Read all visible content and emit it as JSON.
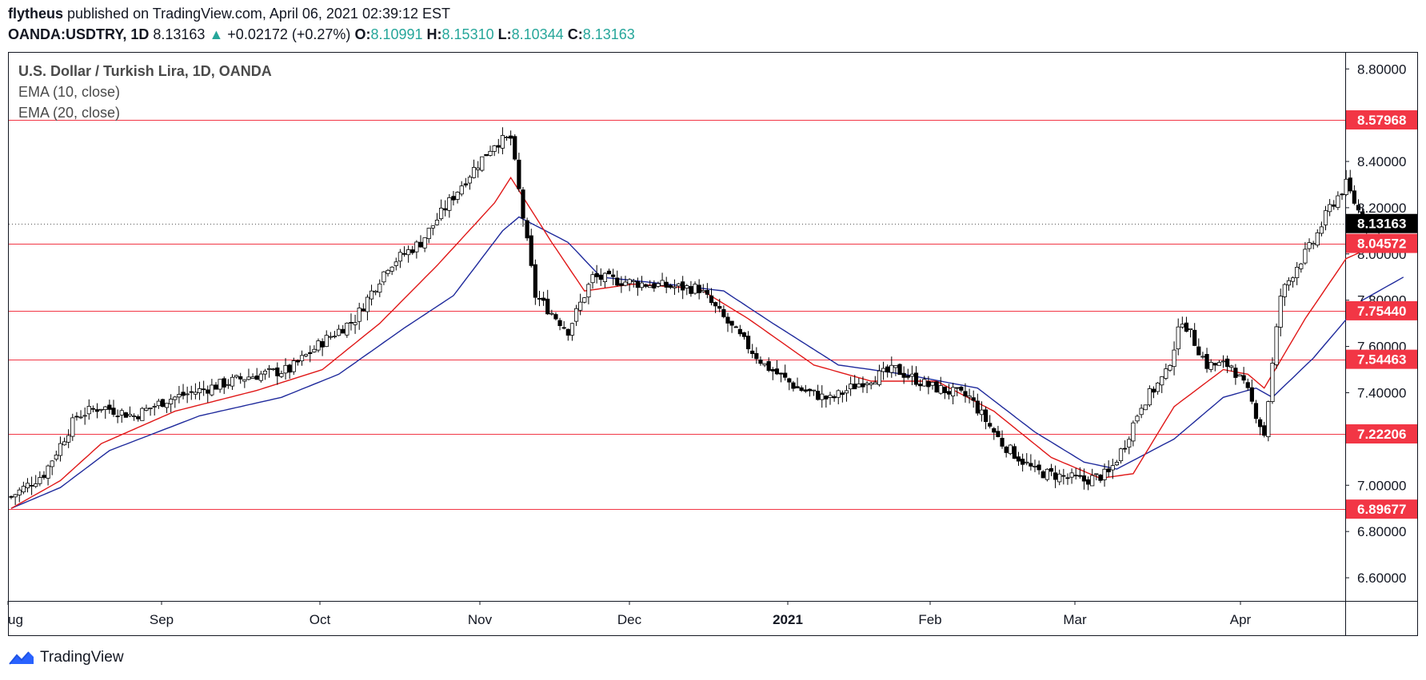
{
  "header": {
    "author": "flytheus",
    "published": "published on TradingView.com, April 06, 2021 02:39:12 EST",
    "symbol": "OANDA:USDTRY, 1D",
    "last": "8.13163",
    "change_arrow": "▲",
    "change": "+0.02172 (+0.27%)",
    "open_label": "O:",
    "open": "8.10991",
    "high_label": "H:",
    "high": "8.15310",
    "low_label": "L:",
    "low": "8.10344",
    "close_label": "C:",
    "close": "8.13163"
  },
  "legend": {
    "title": "U.S. Dollar / Turkish Lira, 1D, OANDA",
    "ema10": "EMA (10, close)",
    "ema20": "EMA (20, close)"
  },
  "footer": {
    "brand": "TradingView"
  },
  "colors": {
    "up_candle": "#ffffff",
    "down_candle": "#000000",
    "ema10": "#e01818",
    "ema20": "#1f2a9c",
    "level_line": "#f23645",
    "last_price_badge": "#000000"
  },
  "chart_data": {
    "type": "candlestick",
    "symbol": "OANDA:USDTRY",
    "timeframe": "1D",
    "ylim": [
      6.5,
      8.87
    ],
    "y_ticks": [
      "8.80000",
      "8.40000",
      "8.20000",
      "8.00000",
      "7.80000",
      "7.60000",
      "7.40000",
      "7.00000",
      "6.80000",
      "6.60000"
    ],
    "x_ticks": [
      "ug",
      "Sep",
      "Oct",
      "Nov",
      "Dec",
      "2021",
      "Feb",
      "Mar",
      "Apr"
    ],
    "grid": false,
    "horizontal_levels": [
      "8.57968",
      "8.04572",
      "7.75440",
      "7.54463",
      "7.22206",
      "6.89677"
    ],
    "last_price": "8.13163",
    "close_path": [
      [
        0,
        6.95
      ],
      [
        8,
        7.05
      ],
      [
        16,
        7.3
      ],
      [
        22,
        7.34
      ],
      [
        30,
        7.3
      ],
      [
        38,
        7.37
      ],
      [
        48,
        7.42
      ],
      [
        58,
        7.47
      ],
      [
        68,
        7.5
      ],
      [
        76,
        7.62
      ],
      [
        84,
        7.72
      ],
      [
        92,
        7.95
      ],
      [
        100,
        8.05
      ],
      [
        110,
        8.3
      ],
      [
        118,
        8.48
      ],
      [
        122,
        8.5
      ],
      [
        128,
        7.82
      ],
      [
        136,
        7.67
      ],
      [
        142,
        7.9
      ],
      [
        150,
        7.88
      ],
      [
        160,
        7.86
      ],
      [
        168,
        7.85
      ],
      [
        176,
        7.68
      ],
      [
        184,
        7.52
      ],
      [
        192,
        7.42
      ],
      [
        200,
        7.37
      ],
      [
        208,
        7.45
      ],
      [
        216,
        7.5
      ],
      [
        224,
        7.43
      ],
      [
        234,
        7.38
      ],
      [
        242,
        7.18
      ],
      [
        250,
        7.06
      ],
      [
        256,
        7.04
      ],
      [
        262,
        7.02
      ],
      [
        268,
        7.05
      ],
      [
        272,
        7.18
      ],
      [
        276,
        7.35
      ],
      [
        282,
        7.48
      ],
      [
        286,
        7.72
      ],
      [
        292,
        7.52
      ],
      [
        298,
        7.52
      ],
      [
        302,
        7.4
      ],
      [
        306,
        7.22
      ],
      [
        310,
        7.82
      ],
      [
        314,
        7.95
      ],
      [
        318,
        8.05
      ],
      [
        322,
        8.2
      ],
      [
        326,
        8.3
      ],
      [
        330,
        8.15
      ],
      [
        334,
        8.13
      ]
    ],
    "ema10_path": [
      [
        0,
        6.9
      ],
      [
        12,
        7.02
      ],
      [
        22,
        7.18
      ],
      [
        40,
        7.32
      ],
      [
        60,
        7.41
      ],
      [
        76,
        7.5
      ],
      [
        90,
        7.7
      ],
      [
        104,
        7.95
      ],
      [
        118,
        8.22
      ],
      [
        122,
        8.33
      ],
      [
        132,
        8.05
      ],
      [
        140,
        7.84
      ],
      [
        152,
        7.87
      ],
      [
        168,
        7.85
      ],
      [
        180,
        7.72
      ],
      [
        196,
        7.52
      ],
      [
        210,
        7.45
      ],
      [
        226,
        7.45
      ],
      [
        240,
        7.32
      ],
      [
        254,
        7.12
      ],
      [
        266,
        7.03
      ],
      [
        274,
        7.05
      ],
      [
        284,
        7.34
      ],
      [
        296,
        7.5
      ],
      [
        302,
        7.48
      ],
      [
        306,
        7.42
      ],
      [
        316,
        7.72
      ],
      [
        326,
        7.98
      ],
      [
        336,
        8.06
      ]
    ],
    "ema20_path": [
      [
        0,
        6.9
      ],
      [
        12,
        6.99
      ],
      [
        24,
        7.15
      ],
      [
        46,
        7.3
      ],
      [
        66,
        7.38
      ],
      [
        80,
        7.48
      ],
      [
        96,
        7.68
      ],
      [
        108,
        7.82
      ],
      [
        120,
        8.1
      ],
      [
        124,
        8.16
      ],
      [
        136,
        8.05
      ],
      [
        144,
        7.9
      ],
      [
        160,
        7.87
      ],
      [
        174,
        7.84
      ],
      [
        186,
        7.7
      ],
      [
        202,
        7.52
      ],
      [
        218,
        7.48
      ],
      [
        236,
        7.42
      ],
      [
        250,
        7.23
      ],
      [
        262,
        7.1
      ],
      [
        270,
        7.07
      ],
      [
        284,
        7.2
      ],
      [
        296,
        7.38
      ],
      [
        304,
        7.42
      ],
      [
        308,
        7.38
      ],
      [
        318,
        7.55
      ],
      [
        330,
        7.8
      ],
      [
        340,
        7.9
      ]
    ]
  }
}
